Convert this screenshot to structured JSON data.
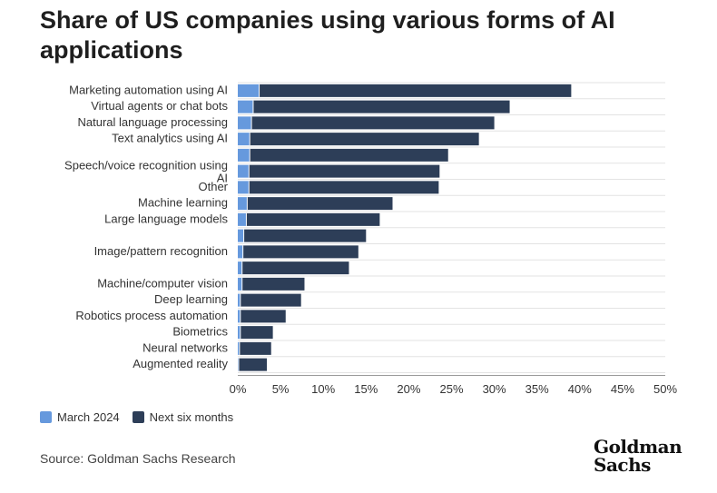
{
  "title": "Share of US companies using various forms of AI applications",
  "legend": {
    "march_label": "March 2024",
    "next_label": "Next six months"
  },
  "source": "Source: Goldman Sachs Research",
  "logo": {
    "line1": "Goldman",
    "line2": "Sachs"
  },
  "colors": {
    "march": "#6699dd",
    "next": "#2d3e58",
    "grid": "#e3e3e3"
  },
  "chart_data": {
    "type": "bar",
    "orientation": "horizontal",
    "stacked": true,
    "title": "Share of US companies using various forms of AI applications",
    "categories": [
      "Marketing automation using AI",
      "Virtual agents or chat bots",
      "Natural language processing",
      "Text analytics using AI",
      "",
      "Speech/voice recognition using AI",
      "Other",
      "Machine learning",
      "Large language models",
      "",
      "Image/pattern recognition",
      "",
      "Machine/computer vision",
      "Deep learning",
      "Robotics process automation",
      "Biometrics",
      "Neural networks",
      "Augmented reality"
    ],
    "series": [
      {
        "name": "March 2024",
        "values": [
          2.5,
          1.8,
          1.6,
          1.4,
          1.4,
          1.3,
          1.3,
          1.1,
          1.0,
          0.7,
          0.6,
          0.5,
          0.5,
          0.3,
          0.3,
          0.3,
          0.2,
          0.1
        ]
      },
      {
        "name": "Next six months",
        "values": [
          36.5,
          30.0,
          28.4,
          26.8,
          23.2,
          22.3,
          22.2,
          17.0,
          15.6,
          14.3,
          13.5,
          12.5,
          7.3,
          7.1,
          5.3,
          3.8,
          3.7,
          3.3
        ]
      }
    ],
    "xticks": [
      "0%",
      "5%",
      "10%",
      "15%",
      "20%",
      "25%",
      "30%",
      "35%",
      "40%",
      "45%",
      "50%"
    ],
    "xlim": [
      0,
      50
    ],
    "xlabel": "",
    "ylabel": "",
    "legend_position": "bottom-left",
    "grid": true
  }
}
